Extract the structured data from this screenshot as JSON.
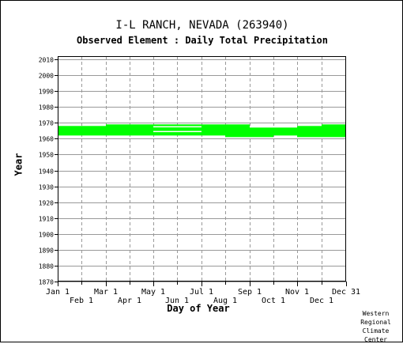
{
  "title": "I-L RANCH, NEVADA   (263940)",
  "subtitle": "Observed Element : Daily Total Precipitation",
  "credit": [
    "Western",
    "Regional",
    "Climate",
    "Center"
  ],
  "colors": {
    "data": "#00ff00",
    "grid": "#999999",
    "axis": "#000000"
  },
  "chart_data": {
    "type": "bar",
    "xlabel": "Day of Year",
    "ylabel": "Year",
    "ylim": [
      1870,
      2012
    ],
    "y_ticks": [
      1870,
      1880,
      1890,
      1900,
      1910,
      1920,
      1930,
      1940,
      1950,
      1960,
      1970,
      1980,
      1990,
      2000,
      2010
    ],
    "y_tick_labels": [
      "1870",
      "1880",
      "1890",
      "1900",
      "1910",
      "1920",
      "1930",
      "1940",
      "1950",
      "1960",
      "1970",
      "1980",
      "1990",
      "2000",
      "2010"
    ],
    "x_ticks_top_row": [
      "Jan 1",
      "Mar 1",
      "May 1",
      "Jul 1",
      "Sep 1",
      "Nov 1",
      "Dec 31"
    ],
    "x_ticks_bottom_row": [
      "Feb 1",
      "Apr 1",
      "Jun 1",
      "Aug 1",
      "Oct 1",
      "Dec 1"
    ],
    "grid": true,
    "series": [
      {
        "months": [
          "Jan",
          "Feb",
          "Mar",
          "Apr",
          "May",
          "Jun",
          "Jul",
          "Aug",
          "Sep",
          "Oct",
          "Nov",
          "Dec"
        ],
        "start_year": [
          1962,
          1962,
          1962,
          1962,
          1962,
          1962,
          1962,
          1961,
          1961,
          1962,
          1961,
          1961
        ],
        "end_year": [
          1967,
          1967,
          1968,
          1968,
          1968,
          1968,
          1968,
          1968,
          1966,
          1966,
          1967,
          1968
        ],
        "gap_years": [
          [],
          [],
          [],
          [],
          [
            1967,
            1964
          ],
          [
            1967,
            1964
          ],
          [],
          [],
          [],
          [],
          [],
          []
        ]
      }
    ]
  }
}
